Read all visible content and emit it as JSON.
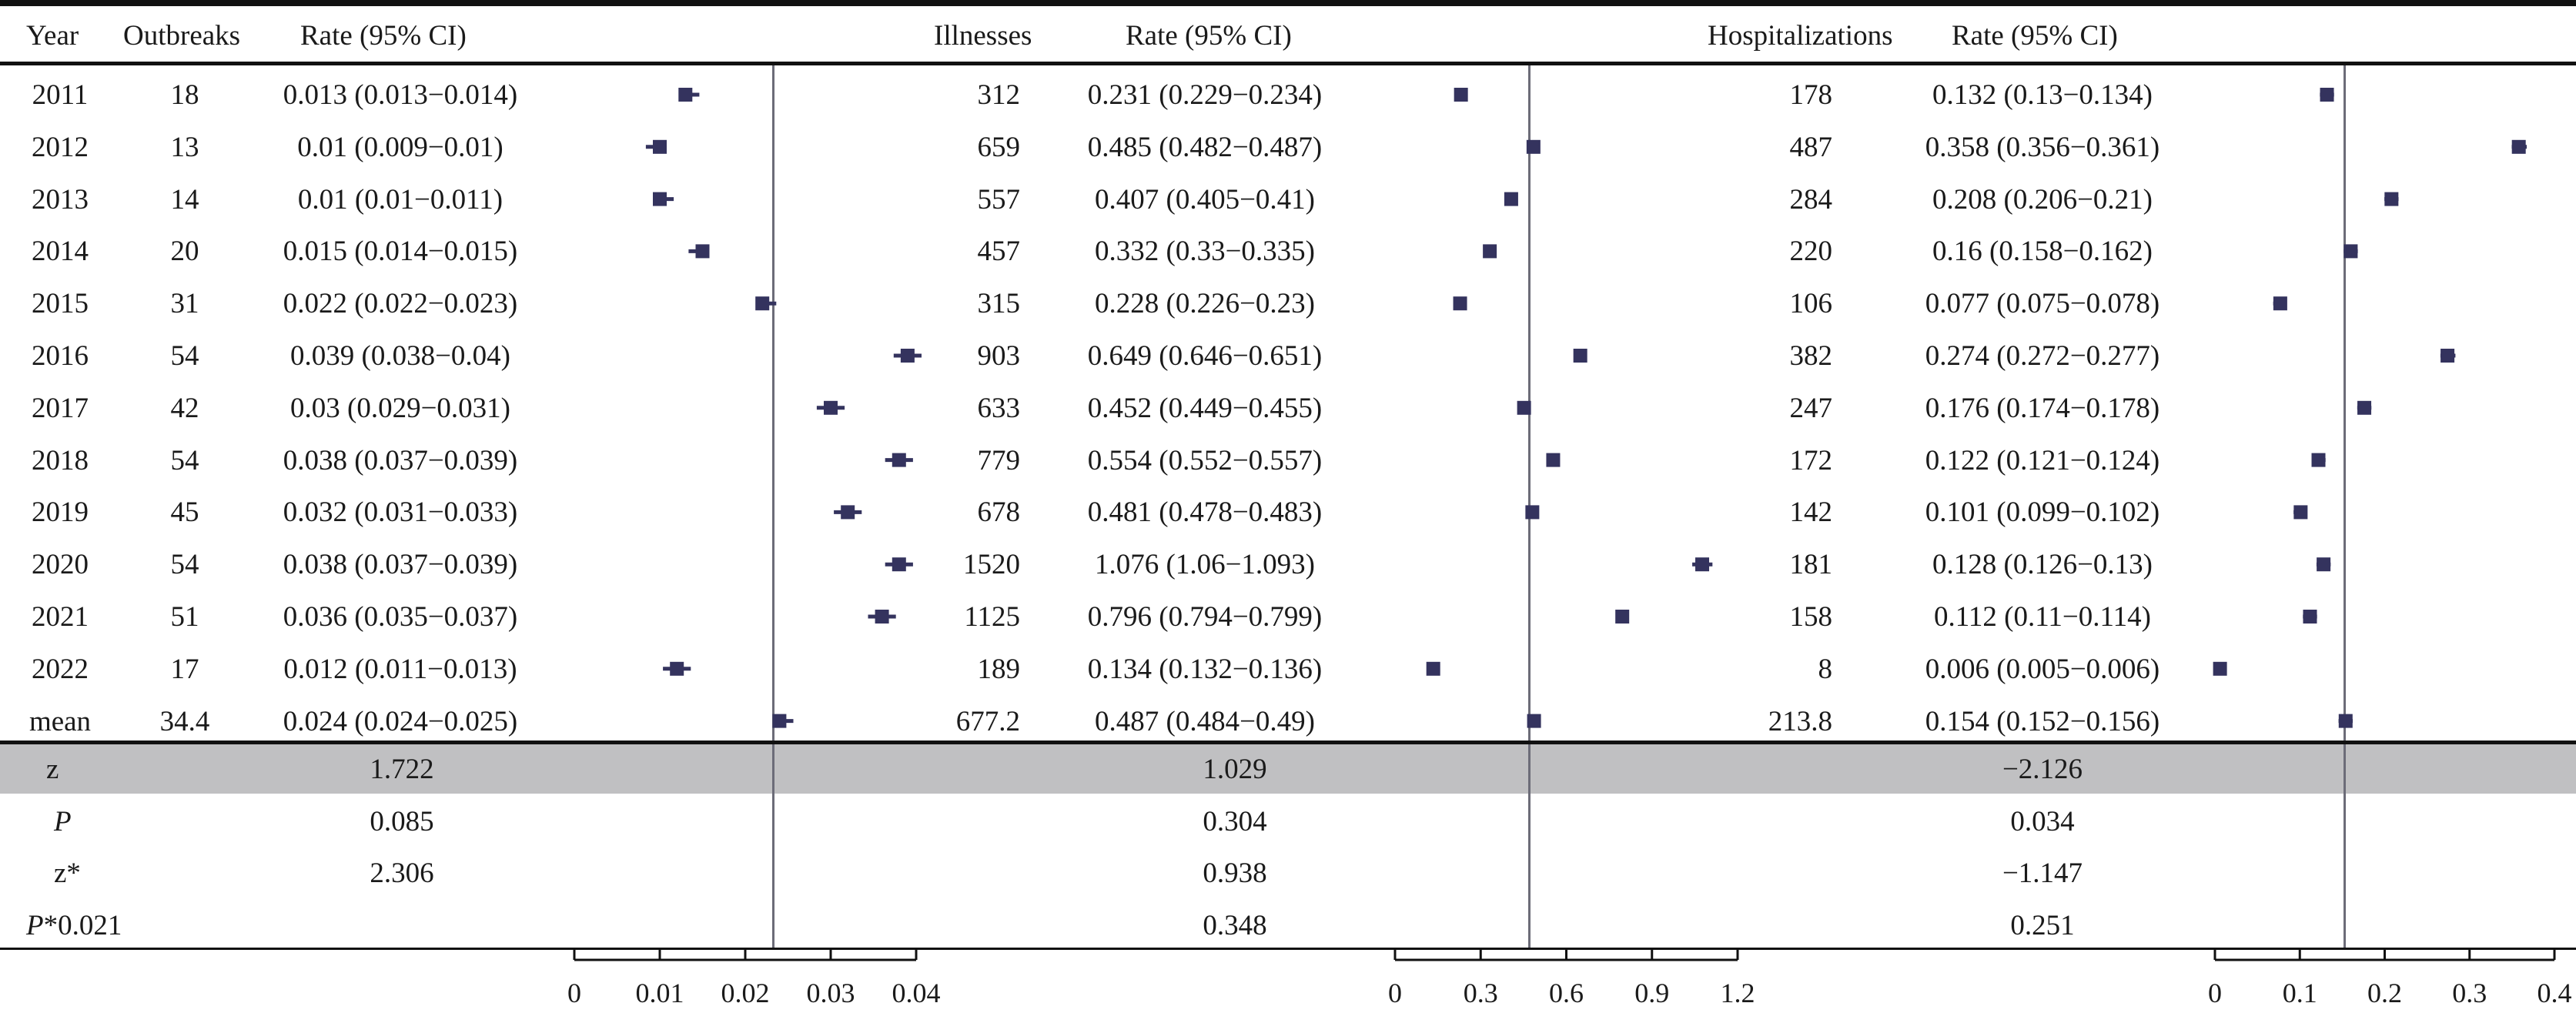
{
  "headers": {
    "year": "Year",
    "outbreaks": "Outbreaks",
    "rate1": "Rate (95% CI)",
    "illnesses": "Illnesses",
    "rate2": "Rate (95% CI)",
    "hospitalizations": "Hospitalizations",
    "rate3": "Rate (95% CI)"
  },
  "rows": [
    {
      "year": "2011",
      "outbreaks": "18",
      "rate1": "0.013 (0.013−0.014)",
      "illnesses": "312",
      "rate2": "0.231 (0.229−0.234)",
      "hosp": "178",
      "rate3": "0.132 (0.13−0.134)"
    },
    {
      "year": "2012",
      "outbreaks": "13",
      "rate1": "0.01 (0.009−0.01)",
      "illnesses": "659",
      "rate2": "0.485 (0.482−0.487)",
      "hosp": "487",
      "rate3": "0.358 (0.356−0.361)"
    },
    {
      "year": "2013",
      "outbreaks": "14",
      "rate1": "0.01 (0.01−0.011)",
      "illnesses": "557",
      "rate2": "0.407 (0.405−0.41)",
      "hosp": "284",
      "rate3": "0.208 (0.206−0.21)"
    },
    {
      "year": "2014",
      "outbreaks": "20",
      "rate1": "0.015 (0.014−0.015)",
      "illnesses": "457",
      "rate2": "0.332 (0.33−0.335)",
      "hosp": "220",
      "rate3": "0.16 (0.158−0.162)"
    },
    {
      "year": "2015",
      "outbreaks": "31",
      "rate1": "0.022 (0.022−0.023)",
      "illnesses": "315",
      "rate2": "0.228 (0.226−0.23)",
      "hosp": "106",
      "rate3": "0.077 (0.075−0.078)"
    },
    {
      "year": "2016",
      "outbreaks": "54",
      "rate1": "0.039 (0.038−0.04)",
      "illnesses": "903",
      "rate2": "0.649 (0.646−0.651)",
      "hosp": "382",
      "rate3": "0.274 (0.272−0.277)"
    },
    {
      "year": "2017",
      "outbreaks": "42",
      "rate1": "0.03 (0.029−0.031)",
      "illnesses": "633",
      "rate2": "0.452 (0.449−0.455)",
      "hosp": "247",
      "rate3": "0.176 (0.174−0.178)"
    },
    {
      "year": "2018",
      "outbreaks": "54",
      "rate1": "0.038 (0.037−0.039)",
      "illnesses": "779",
      "rate2": "0.554 (0.552−0.557)",
      "hosp": "172",
      "rate3": "0.122 (0.121−0.124)"
    },
    {
      "year": "2019",
      "outbreaks": "45",
      "rate1": "0.032 (0.031−0.033)",
      "illnesses": "678",
      "rate2": "0.481 (0.478−0.483)",
      "hosp": "142",
      "rate3": "0.101 (0.099−0.102)"
    },
    {
      "year": "2020",
      "outbreaks": "54",
      "rate1": "0.038 (0.037−0.039)",
      "illnesses": "1520",
      "rate2": "1.076 (1.06−1.093)",
      "hosp": "181",
      "rate3": "0.128 (0.126−0.13)"
    },
    {
      "year": "2021",
      "outbreaks": "51",
      "rate1": "0.036 (0.035−0.037)",
      "illnesses": "1125",
      "rate2": "0.796 (0.794−0.799)",
      "hosp": "158",
      "rate3": "0.112 (0.11−0.114)"
    },
    {
      "year": "2022",
      "outbreaks": "17",
      "rate1": "0.012 (0.011−0.013)",
      "illnesses": "189",
      "rate2": "0.134 (0.132−0.136)",
      "hosp": "8",
      "rate3": "0.006 (0.005−0.006)"
    },
    {
      "year": "mean",
      "outbreaks": "34.4",
      "rate1": "0.024 (0.024−0.025)",
      "illnesses": "677.2",
      "rate2": "0.487 (0.484−0.49)",
      "hosp": "213.8",
      "rate3": "0.154 (0.152−0.156)"
    }
  ],
  "stats": [
    {
      "label": "z",
      "italic": false,
      "v1": "1.722",
      "v2": "1.029",
      "v3": "−2.126"
    },
    {
      "label": "P",
      "italic": true,
      "v1": "0.085",
      "v2": "0.304",
      "v3": "0.034"
    },
    {
      "label": "z*",
      "italic": false,
      "v1": "2.306",
      "v2": "0.938",
      "v3": "−1.147"
    },
    {
      "label": "P*0.021",
      "italic": true,
      "v1": "",
      "v2": "0.348",
      "v3": "0.251"
    }
  ],
  "colors": {
    "marker": "#34335e",
    "band": "#c0c0c2",
    "refline": "#6c6c78"
  },
  "chart_data": [
    {
      "type": "scatter",
      "name": "Outbreaks rate",
      "x": [
        0.013,
        0.01,
        0.01,
        0.015,
        0.022,
        0.039,
        0.03,
        0.038,
        0.032,
        0.038,
        0.036,
        0.012,
        0.024
      ],
      "ci": [
        [
          0.013,
          0.014
        ],
        [
          0.009,
          0.01
        ],
        [
          0.01,
          0.011
        ],
        [
          0.014,
          0.015
        ],
        [
          0.022,
          0.023
        ],
        [
          0.038,
          0.04
        ],
        [
          0.029,
          0.031
        ],
        [
          0.037,
          0.039
        ],
        [
          0.031,
          0.033
        ],
        [
          0.037,
          0.039
        ],
        [
          0.035,
          0.037
        ],
        [
          0.011,
          0.013
        ],
        [
          0.024,
          0.025
        ]
      ],
      "categories": [
        "2011",
        "2012",
        "2013",
        "2014",
        "2015",
        "2016",
        "2017",
        "2018",
        "2019",
        "2020",
        "2021",
        "2022",
        "mean"
      ],
      "reference": 0.024,
      "xticks": [
        "0",
        "0.01",
        "0.02",
        "0.03",
        "0.04"
      ],
      "xtick_values": [
        0,
        0.01,
        0.02,
        0.03,
        0.04
      ]
    },
    {
      "type": "scatter",
      "name": "Illnesses rate",
      "x": [
        0.231,
        0.485,
        0.407,
        0.332,
        0.228,
        0.649,
        0.452,
        0.554,
        0.481,
        1.076,
        0.796,
        0.134,
        0.487
      ],
      "ci": [
        [
          0.229,
          0.234
        ],
        [
          0.482,
          0.487
        ],
        [
          0.405,
          0.41
        ],
        [
          0.33,
          0.335
        ],
        [
          0.226,
          0.23
        ],
        [
          0.646,
          0.651
        ],
        [
          0.449,
          0.455
        ],
        [
          0.552,
          0.557
        ],
        [
          0.478,
          0.483
        ],
        [
          1.06,
          1.093
        ],
        [
          0.794,
          0.799
        ],
        [
          0.132,
          0.136
        ],
        [
          0.484,
          0.49
        ]
      ],
      "categories": [
        "2011",
        "2012",
        "2013",
        "2014",
        "2015",
        "2016",
        "2017",
        "2018",
        "2019",
        "2020",
        "2021",
        "2022",
        "mean"
      ],
      "reference": 0.487,
      "xticks": [
        "0",
        "0.3",
        "0.6",
        "0.9",
        "1.2"
      ],
      "xtick_values": [
        0,
        0.3,
        0.6,
        0.9,
        1.2
      ]
    },
    {
      "type": "scatter",
      "name": "Hospitalizations rate",
      "x": [
        0.132,
        0.358,
        0.208,
        0.16,
        0.077,
        0.274,
        0.176,
        0.122,
        0.101,
        0.128,
        0.112,
        0.006,
        0.154
      ],
      "ci": [
        [
          0.13,
          0.134
        ],
        [
          0.356,
          0.361
        ],
        [
          0.206,
          0.21
        ],
        [
          0.158,
          0.162
        ],
        [
          0.075,
          0.078
        ],
        [
          0.272,
          0.277
        ],
        [
          0.174,
          0.178
        ],
        [
          0.121,
          0.124
        ],
        [
          0.099,
          0.102
        ],
        [
          0.126,
          0.13
        ],
        [
          0.11,
          0.114
        ],
        [
          0.005,
          0.006
        ],
        [
          0.152,
          0.156
        ]
      ],
      "categories": [
        "2011",
        "2012",
        "2013",
        "2014",
        "2015",
        "2016",
        "2017",
        "2018",
        "2019",
        "2020",
        "2021",
        "2022",
        "mean"
      ],
      "reference": 0.154,
      "xticks": [
        "0",
        "0.1",
        "0.2",
        "0.3",
        "0.4"
      ],
      "xtick_values": [
        0,
        0.1,
        0.2,
        0.3,
        0.4
      ]
    }
  ]
}
